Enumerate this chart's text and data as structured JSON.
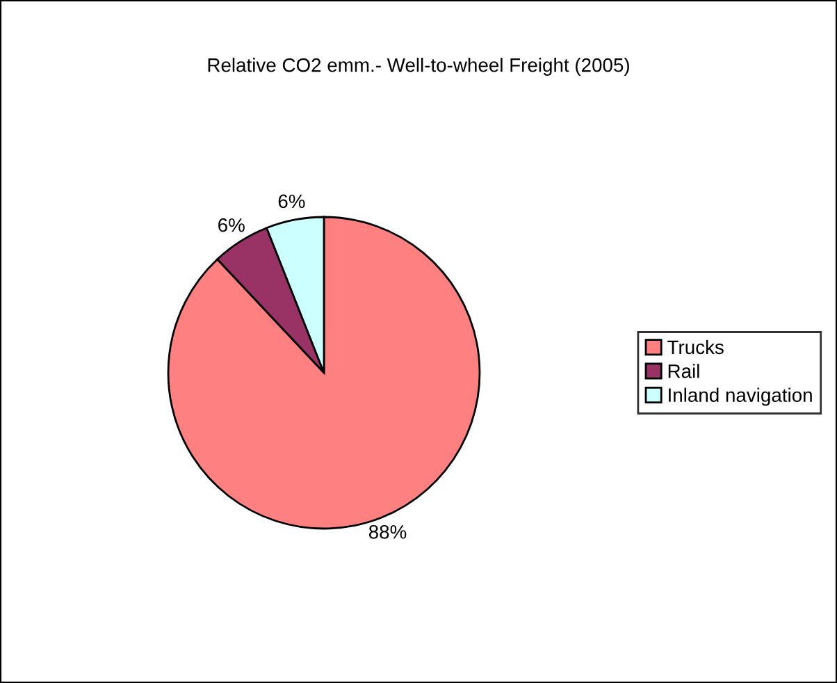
{
  "chart_data": {
    "type": "pie",
    "title": "Relative CO2 emm.- Well-to-wheel Freight (2005)",
    "categories": [
      "Trucks",
      "Rail",
      "Inland navigation"
    ],
    "values": [
      88,
      6,
      6
    ],
    "value_labels": [
      "88%",
      "6%",
      "6%"
    ],
    "colors": [
      "#ff8080",
      "#993366",
      "#ccffff"
    ],
    "legend": "right"
  }
}
